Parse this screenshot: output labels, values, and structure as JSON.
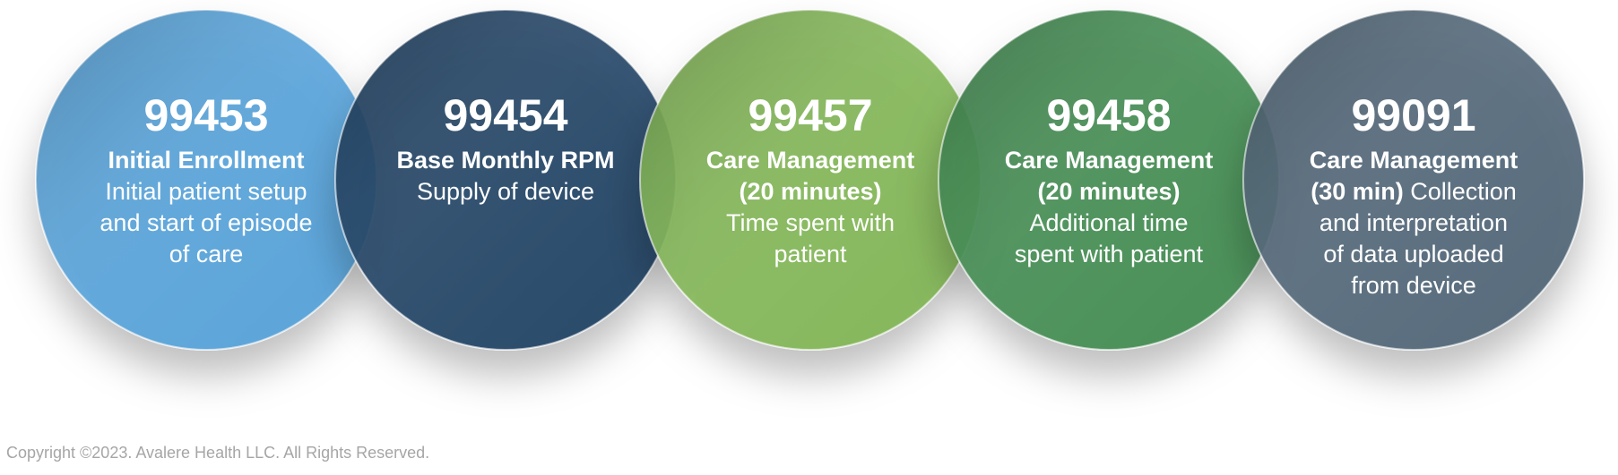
{
  "items": [
    {
      "code": "99453",
      "color": "#4f9fd8",
      "lines": [
        [
          {
            "text": "Initial Enrollment",
            "bold": true
          }
        ],
        [
          {
            "text": "Initial patient setup",
            "bold": false
          }
        ],
        [
          {
            "text": "and start of episode",
            "bold": false
          }
        ],
        [
          {
            "text": "of care",
            "bold": false
          }
        ]
      ]
    },
    {
      "code": "99454",
      "color": "#173a5e",
      "lines": [
        [
          {
            "text": "Base Monthly RPM",
            "bold": true
          }
        ],
        [
          {
            "text": "Supply of device",
            "bold": false
          }
        ]
      ]
    },
    {
      "code": "99457",
      "color": "#7db44f",
      "lines": [
        [
          {
            "text": "Care Management",
            "bold": true
          }
        ],
        [
          {
            "text": "(20 minutes)",
            "bold": true
          }
        ],
        [
          {
            "text": "Time spent with",
            "bold": false
          }
        ],
        [
          {
            "text": "patient",
            "bold": false
          }
        ]
      ]
    },
    {
      "code": "99458",
      "color": "#3a874b",
      "lines": [
        [
          {
            "text": "Care Management",
            "bold": true
          }
        ],
        [
          {
            "text": "(20 minutes)",
            "bold": true
          }
        ],
        [
          {
            "text": "Additional time",
            "bold": false
          }
        ],
        [
          {
            "text": "spent with patient",
            "bold": false
          }
        ]
      ]
    },
    {
      "code": "99091",
      "color": "#4a6172",
      "lines": [
        [
          {
            "text": "Care Management",
            "bold": true
          }
        ],
        [
          {
            "text": "(30 min)",
            "bold": true
          },
          {
            "text": " Collection",
            "bold": false
          }
        ],
        [
          {
            "text": "and interpretation",
            "bold": false
          }
        ],
        [
          {
            "text": "of data uploaded",
            "bold": false
          }
        ],
        [
          {
            "text": "from device",
            "bold": false
          }
        ]
      ]
    }
  ],
  "footer": "Copyright ©2023. Avalere Health LLC. All Rights Reserved."
}
